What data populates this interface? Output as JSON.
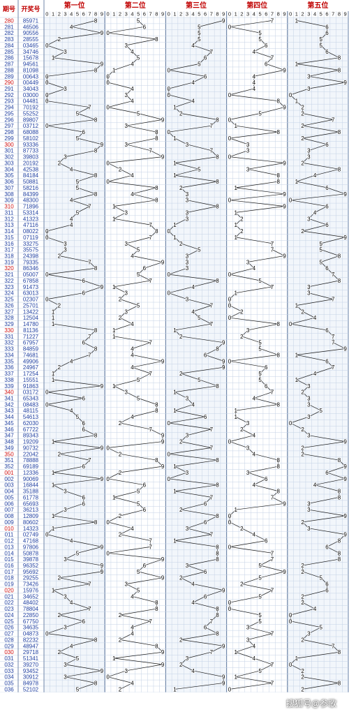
{
  "chart_data": {
    "type": "line",
    "headers": {
      "period": "期号",
      "number": "开奖号"
    },
    "groups": [
      "第一位",
      "第二位",
      "第三位",
      "第四位",
      "第五位"
    ],
    "digits": [
      "0",
      "1",
      "2",
      "3",
      "4",
      "5",
      "6",
      "7",
      "8",
      "9"
    ],
    "periods": [
      "280",
      "281",
      "282",
      "283",
      "284",
      "285",
      "286",
      "287",
      "288",
      "289",
      "290",
      "291",
      "292",
      "293",
      "294",
      "295",
      "296",
      "297",
      "298",
      "299",
      "300",
      "301",
      "302",
      "303",
      "304",
      "305",
      "306",
      "307",
      "308",
      "309",
      "310",
      "311",
      "312",
      "313",
      "314",
      "315",
      "316",
      "317",
      "318",
      "319",
      "320",
      "321",
      "322",
      "323",
      "324",
      "325",
      "326",
      "327",
      "328",
      "329",
      "330",
      "331",
      "332",
      "333",
      "334",
      "335",
      "336",
      "337",
      "338",
      "339",
      "340",
      "341",
      "342",
      "343",
      "344",
      "345",
      "346",
      "347",
      "348",
      "349",
      "350",
      "351",
      "352",
      "001",
      "002",
      "003",
      "004",
      "005",
      "006",
      "007",
      "008",
      "009",
      "010",
      "011",
      "012",
      "013",
      "014",
      "015",
      "016",
      "017",
      "018",
      "019",
      "020",
      "021",
      "022",
      "023",
      "024",
      "025",
      "026",
      "027",
      "028",
      "029",
      "030",
      "031",
      "032",
      "033",
      "034",
      "035",
      "036"
    ],
    "numbers": [
      "85971",
      "46506",
      "90556",
      "28555",
      "03465",
      "34746",
      "15678",
      "94561",
      "81098",
      "00643",
      "00449",
      "34043",
      "03000",
      "04481",
      "70192",
      "55252",
      "89807",
      "03712",
      "68088",
      "58102",
      "93336",
      "87733",
      "39803",
      "20192",
      "42538",
      "84184",
      "50881",
      "58216",
      "84399",
      "48300",
      "71896",
      "53314",
      "41323",
      "47116",
      "08022",
      "07119",
      "33275",
      "35575",
      "24398",
      "79335",
      "86346",
      "05007",
      "67858",
      "91473",
      "63013",
      "02307",
      "25701",
      "13422",
      "12504",
      "14780",
      "81136",
      "71227",
      "67957",
      "84859",
      "74681",
      "49906",
      "24967",
      "17254",
      "15551",
      "91863",
      "03172",
      "65343",
      "08483",
      "48115",
      "54613",
      "62030",
      "67722",
      "89343",
      "19209",
      "90732",
      "22042",
      "78888",
      "69189",
      "12336",
      "90069",
      "16844",
      "35188",
      "61778",
      "65693",
      "36213",
      "12809",
      "80602",
      "14323",
      "02749",
      "47168",
      "97806",
      "50878",
      "39878",
      "96352",
      "95692",
      "29255",
      "73426",
      "15976",
      "34652",
      "48402",
      "78804",
      "22850",
      "67750",
      "34635",
      "04873",
      "82232",
      "48947",
      "29718",
      "51341",
      "39270",
      "93452",
      "30912",
      "84978",
      "52102"
    ]
  },
  "colors": {
    "header_text": "#c00000",
    "period_text": "#1f3fa0",
    "period_text_alt": "#d01010",
    "number_text": "#1f3fa0",
    "line": "#1a1a1a",
    "grid": "#c4d2e6",
    "band": "#f2f6fb"
  },
  "watermark": "搜狐号@参歌"
}
